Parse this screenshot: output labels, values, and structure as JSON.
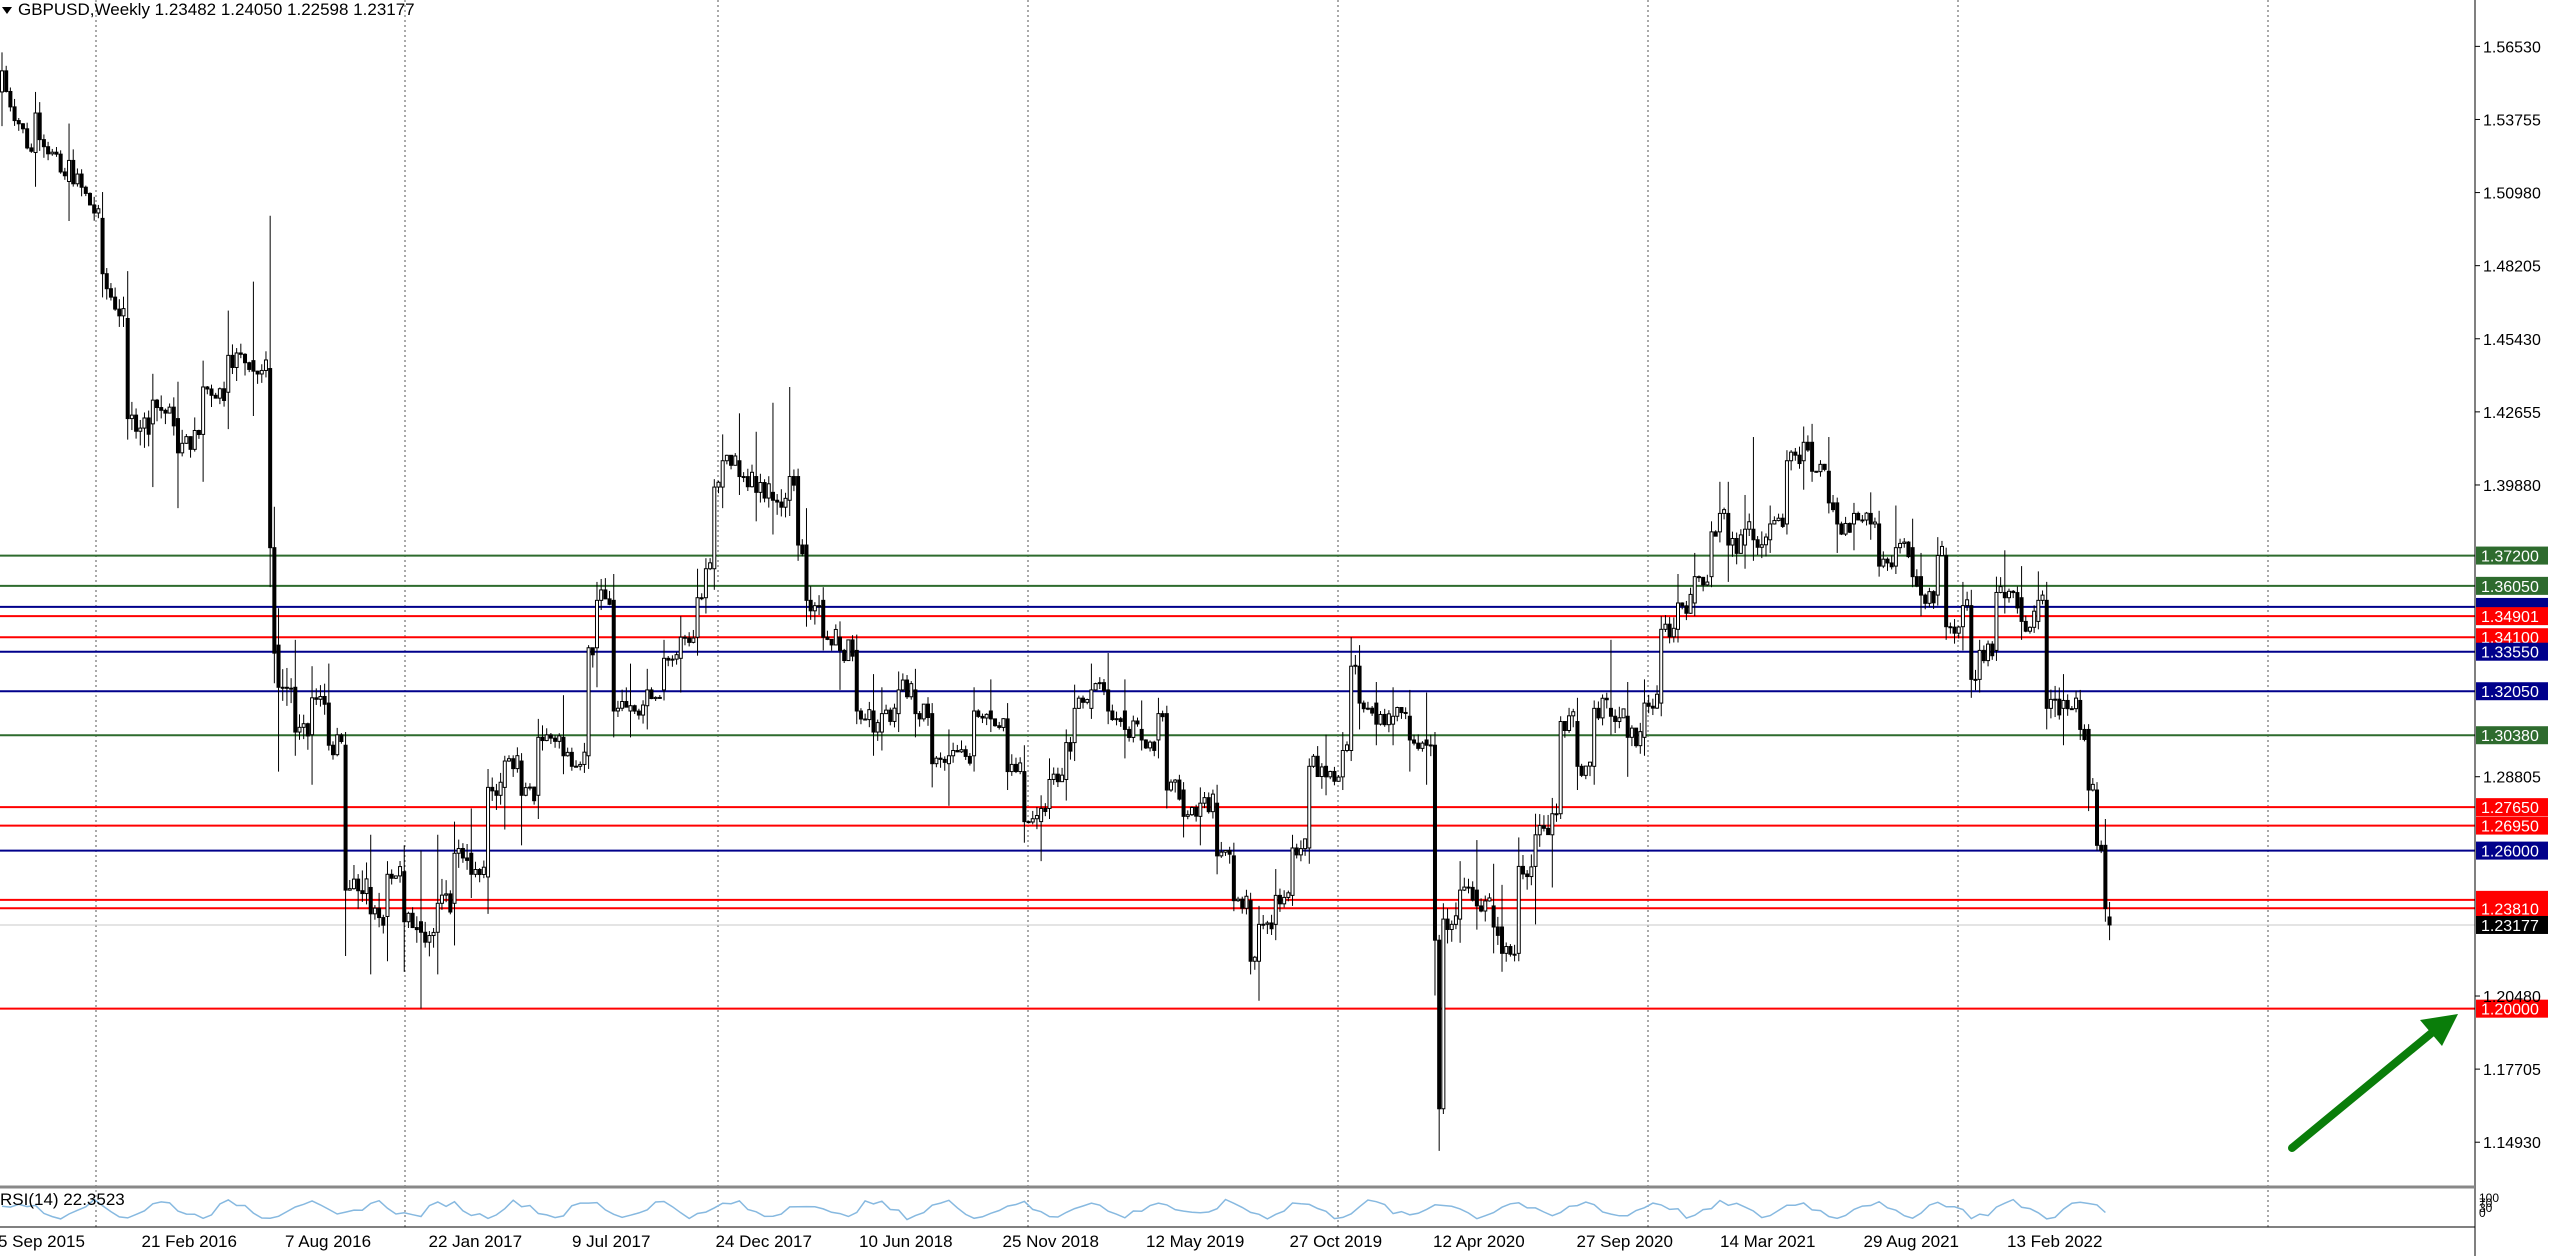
{
  "header": {
    "symbol_line": "GBPUSD,Weekly  1.23482 1.24050 1.22598 1.23177"
  },
  "rsi": {
    "label": "RSI(14) 22.3523",
    "current": 22.3523,
    "scale_labels": [
      "100",
      "70",
      "30",
      "0"
    ]
  },
  "colors": {
    "background": "#ffffff",
    "candle_up": "#ffffff",
    "candle_down": "#000000",
    "grid": "#555555",
    "red_level": "#ff0000",
    "green_level": "#2e6b2e",
    "blue_level": "#00008b",
    "price_tag": "#000000",
    "rsi_line": "#87b9e0",
    "arrow": "#0a7d0a"
  },
  "chart_data": {
    "type": "candlestick",
    "title": "GBPUSD,Weekly",
    "ohlc_current": {
      "open": 1.23482,
      "high": 1.2405,
      "low": 1.22598,
      "close": 1.23177
    },
    "y_ticks": [
      "1.56530",
      "1.53755",
      "1.50980",
      "1.48205",
      "1.45430",
      "1.42655",
      "1.39880",
      "1.28805",
      "1.20480",
      "1.17705",
      "1.14930"
    ],
    "y_range": [
      1.1323,
      1.5829
    ],
    "x_labels": [
      "5 Sep 2015",
      "21 Feb 2016",
      "7 Aug 2016",
      "22 Jan 2017",
      "9 Jul 2017",
      "24 Dec 2017",
      "10 Jun 2018",
      "25 Nov 2018",
      "12 May 2019",
      "27 Oct 2019",
      "12 Apr 2020",
      "27 Sep 2020",
      "14 Mar 2021",
      "29 Aug 2021",
      "13 Feb 2022"
    ],
    "levels": [
      {
        "price": 1.372,
        "label": "1.37200",
        "color": "green"
      },
      {
        "price": 1.3605,
        "label": "1.36050",
        "color": "green"
      },
      {
        "price": 1.3525,
        "label": "",
        "color": "blue"
      },
      {
        "price": 1.34901,
        "label": "1.34901",
        "color": "red"
      },
      {
        "price": 1.341,
        "label": "1.34100",
        "color": "red"
      },
      {
        "price": 1.3355,
        "label": "1.33550",
        "color": "blue"
      },
      {
        "price": 1.3205,
        "label": "1.32050",
        "color": "blue"
      },
      {
        "price": 1.3038,
        "label": "1.30380",
        "color": "green"
      },
      {
        "price": 1.2765,
        "label": "1.27650",
        "color": "red"
      },
      {
        "price": 1.2695,
        "label": "1.26950",
        "color": "red"
      },
      {
        "price": 1.26,
        "label": "1.26000",
        "color": "blue"
      },
      {
        "price": 1.2413,
        "label": "",
        "color": "red"
      },
      {
        "price": 1.2381,
        "label": "1.23810",
        "color": "red"
      },
      {
        "price": 1.23177,
        "label": "1.23177",
        "color": "black"
      },
      {
        "price": 1.2,
        "label": "1.20000",
        "color": "red"
      }
    ],
    "anchors": [
      [
        0,
        1.548,
        1.563,
        1.535,
        1.556
      ],
      [
        8,
        1.525,
        1.548,
        1.512,
        1.54
      ],
      [
        16,
        1.514,
        1.536,
        1.499,
        1.522
      ],
      [
        24,
        1.5,
        1.51,
        1.47,
        1.479
      ],
      [
        30,
        1.462,
        1.48,
        1.416,
        1.424
      ],
      [
        36,
        1.422,
        1.441,
        1.398,
        1.431
      ],
      [
        42,
        1.424,
        1.438,
        1.39,
        1.411
      ],
      [
        48,
        1.418,
        1.446,
        1.4,
        1.436
      ],
      [
        54,
        1.434,
        1.465,
        1.42,
        1.448
      ],
      [
        60,
        1.446,
        1.476,
        1.425,
        1.442
      ],
      [
        64,
        1.443,
        1.501,
        1.36,
        1.375
      ],
      [
        66,
        1.338,
        1.352,
        1.29,
        1.322
      ],
      [
        70,
        1.322,
        1.34,
        1.296,
        1.305
      ],
      [
        74,
        1.304,
        1.33,
        1.285,
        1.318
      ],
      [
        78,
        1.316,
        1.331,
        1.298,
        1.3
      ],
      [
        82,
        1.3,
        1.305,
        1.22,
        1.245
      ],
      [
        88,
        1.246,
        1.266,
        1.213,
        1.236
      ],
      [
        92,
        1.235,
        1.256,
        1.218,
        1.251
      ],
      [
        96,
        1.252,
        1.262,
        1.214,
        1.233
      ],
      [
        100,
        1.233,
        1.26,
        1.2,
        1.229
      ],
      [
        104,
        1.229,
        1.266,
        1.213,
        1.24
      ],
      [
        108,
        1.24,
        1.271,
        1.224,
        1.259
      ],
      [
        112,
        1.259,
        1.276,
        1.242,
        1.251
      ],
      [
        116,
        1.25,
        1.291,
        1.236,
        1.284
      ],
      [
        120,
        1.284,
        1.296,
        1.268,
        1.294
      ],
      [
        124,
        1.294,
        1.297,
        1.262,
        1.281
      ],
      [
        128,
        1.281,
        1.31,
        1.272,
        1.303
      ],
      [
        134,
        1.303,
        1.319,
        1.289,
        1.296
      ],
      [
        140,
        1.296,
        1.338,
        1.291,
        1.337
      ],
      [
        142,
        1.337,
        1.362,
        1.322,
        1.355
      ],
      [
        146,
        1.355,
        1.365,
        1.303,
        1.313
      ],
      [
        150,
        1.313,
        1.331,
        1.303,
        1.315
      ],
      [
        154,
        1.315,
        1.329,
        1.306,
        1.321
      ],
      [
        158,
        1.321,
        1.34,
        1.317,
        1.333
      ],
      [
        162,
        1.333,
        1.349,
        1.32,
        1.341
      ],
      [
        166,
        1.341,
        1.367,
        1.334,
        1.356
      ],
      [
        168,
        1.356,
        1.371,
        1.35,
        1.367
      ],
      [
        170,
        1.367,
        1.401,
        1.359,
        1.398
      ],
      [
        172,
        1.398,
        1.418,
        1.39,
        1.408
      ],
      [
        176,
        1.408,
        1.426,
        1.395,
        1.402
      ],
      [
        180,
        1.402,
        1.419,
        1.385,
        1.396
      ],
      [
        184,
        1.396,
        1.43,
        1.38,
        1.393
      ],
      [
        188,
        1.393,
        1.436,
        1.387,
        1.402
      ],
      [
        190,
        1.402,
        1.405,
        1.37,
        1.376
      ],
      [
        192,
        1.376,
        1.39,
        1.345,
        1.355
      ],
      [
        196,
        1.355,
        1.36,
        1.336,
        1.341
      ],
      [
        200,
        1.341,
        1.347,
        1.321,
        1.336
      ],
      [
        204,
        1.336,
        1.342,
        1.308,
        1.313
      ],
      [
        208,
        1.313,
        1.327,
        1.296,
        1.305
      ],
      [
        210,
        1.305,
        1.322,
        1.298,
        1.312
      ],
      [
        214,
        1.312,
        1.328,
        1.305,
        1.321
      ],
      [
        218,
        1.321,
        1.329,
        1.303,
        1.312
      ],
      [
        222,
        1.312,
        1.316,
        1.284,
        1.293
      ],
      [
        226,
        1.293,
        1.306,
        1.277,
        1.296
      ],
      [
        232,
        1.296,
        1.322,
        1.29,
        1.313
      ],
      [
        236,
        1.313,
        1.325,
        1.305,
        1.31
      ],
      [
        240,
        1.31,
        1.316,
        1.283,
        1.29
      ],
      [
        244,
        1.29,
        1.3,
        1.263,
        1.271
      ],
      [
        248,
        1.271,
        1.281,
        1.256,
        1.276
      ],
      [
        250,
        1.276,
        1.295,
        1.272,
        1.287
      ],
      [
        254,
        1.287,
        1.306,
        1.279,
        1.301
      ],
      [
        256,
        1.301,
        1.323,
        1.294,
        1.314
      ],
      [
        260,
        1.314,
        1.331,
        1.31,
        1.321
      ],
      [
        264,
        1.321,
        1.335,
        1.308,
        1.313
      ],
      [
        268,
        1.313,
        1.325,
        1.295,
        1.306
      ],
      [
        272,
        1.306,
        1.317,
        1.298,
        1.302
      ],
      [
        276,
        1.302,
        1.318,
        1.295,
        1.312
      ],
      [
        278,
        1.312,
        1.315,
        1.276,
        1.283
      ],
      [
        282,
        1.283,
        1.286,
        1.265,
        1.273
      ],
      [
        286,
        1.273,
        1.284,
        1.262,
        1.278
      ],
      [
        290,
        1.278,
        1.285,
        1.251,
        1.258
      ],
      [
        294,
        1.258,
        1.263,
        1.237,
        1.241
      ],
      [
        298,
        1.241,
        1.244,
        1.213,
        1.218
      ],
      [
        300,
        1.218,
        1.239,
        1.203,
        1.232
      ],
      [
        304,
        1.232,
        1.253,
        1.226,
        1.243
      ],
      [
        308,
        1.243,
        1.266,
        1.239,
        1.261
      ],
      [
        312,
        1.261,
        1.295,
        1.255,
        1.292
      ],
      [
        316,
        1.292,
        1.304,
        1.281,
        1.288
      ],
      [
        320,
        1.288,
        1.305,
        1.283,
        1.298
      ],
      [
        322,
        1.298,
        1.341,
        1.294,
        1.33
      ],
      [
        324,
        1.33,
        1.338,
        1.306,
        1.316
      ],
      [
        328,
        1.316,
        1.324,
        1.3,
        1.308
      ],
      [
        332,
        1.308,
        1.322,
        1.3,
        1.311
      ],
      [
        336,
        1.311,
        1.321,
        1.29,
        1.302
      ],
      [
        340,
        1.302,
        1.32,
        1.285,
        1.3
      ],
      [
        342,
        1.3,
        1.305,
        1.205,
        1.226
      ],
      [
        343,
        1.226,
        1.228,
        1.146,
        1.162
      ],
      [
        344,
        1.162,
        1.24,
        1.16,
        1.234
      ],
      [
        348,
        1.234,
        1.256,
        1.225,
        1.245
      ],
      [
        352,
        1.245,
        1.264,
        1.23,
        1.239
      ],
      [
        356,
        1.239,
        1.255,
        1.221,
        1.231
      ],
      [
        358,
        1.231,
        1.247,
        1.214,
        1.221
      ],
      [
        362,
        1.221,
        1.265,
        1.218,
        1.254
      ],
      [
        366,
        1.254,
        1.274,
        1.232,
        1.266
      ],
      [
        370,
        1.266,
        1.28,
        1.246,
        1.274
      ],
      [
        372,
        1.274,
        1.311,
        1.272,
        1.309
      ],
      [
        376,
        1.309,
        1.318,
        1.283,
        1.292
      ],
      [
        380,
        1.292,
        1.317,
        1.285,
        1.314
      ],
      [
        384,
        1.314,
        1.34,
        1.304,
        1.311
      ],
      [
        388,
        1.311,
        1.324,
        1.288,
        1.303
      ],
      [
        392,
        1.303,
        1.325,
        1.296,
        1.316
      ],
      [
        396,
        1.316,
        1.349,
        1.311,
        1.344
      ],
      [
        400,
        1.344,
        1.365,
        1.339,
        1.354
      ],
      [
        404,
        1.354,
        1.373,
        1.349,
        1.364
      ],
      [
        408,
        1.364,
        1.385,
        1.36,
        1.381
      ],
      [
        410,
        1.381,
        1.4,
        1.377,
        1.388
      ],
      [
        412,
        1.388,
        1.4,
        1.362,
        1.376
      ],
      [
        416,
        1.376,
        1.395,
        1.367,
        1.382
      ],
      [
        418,
        1.382,
        1.417,
        1.37,
        1.378
      ],
      [
        422,
        1.378,
        1.391,
        1.373,
        1.384
      ],
      [
        426,
        1.384,
        1.412,
        1.38,
        1.408
      ],
      [
        430,
        1.408,
        1.421,
        1.397,
        1.415
      ],
      [
        432,
        1.415,
        1.422,
        1.4,
        1.404
      ],
      [
        436,
        1.404,
        1.417,
        1.388,
        1.392
      ],
      [
        438,
        1.392,
        1.394,
        1.373,
        1.384
      ],
      [
        442,
        1.384,
        1.392,
        1.374,
        1.388
      ],
      [
        446,
        1.388,
        1.396,
        1.378,
        1.384
      ],
      [
        448,
        1.384,
        1.389,
        1.364,
        1.368
      ],
      [
        452,
        1.368,
        1.391,
        1.365,
        1.375
      ],
      [
        456,
        1.375,
        1.386,
        1.36,
        1.364
      ],
      [
        458,
        1.364,
        1.373,
        1.349,
        1.357
      ],
      [
        462,
        1.357,
        1.379,
        1.353,
        1.372
      ],
      [
        464,
        1.372,
        1.375,
        1.34,
        1.345
      ],
      [
        468,
        1.345,
        1.362,
        1.336,
        1.353
      ],
      [
        470,
        1.353,
        1.359,
        1.318,
        1.325
      ],
      [
        472,
        1.325,
        1.34,
        1.32,
        1.336
      ],
      [
        476,
        1.336,
        1.364,
        1.332,
        1.358
      ],
      [
        478,
        1.358,
        1.374,
        1.35,
        1.356
      ],
      [
        482,
        1.356,
        1.368,
        1.34,
        1.347
      ],
      [
        486,
        1.347,
        1.366,
        1.344,
        1.355
      ],
      [
        488,
        1.355,
        1.362,
        1.306,
        1.314
      ],
      [
        492,
        1.314,
        1.327,
        1.3,
        1.317
      ],
      [
        496,
        1.317,
        1.321,
        1.302,
        1.306
      ],
      [
        498,
        1.306,
        1.308,
        1.275,
        1.283
      ],
      [
        500,
        1.283,
        1.286,
        1.26,
        1.262
      ],
      [
        502,
        1.262,
        1.272,
        1.233,
        1.238
      ],
      [
        503,
        1.2348,
        1.2405,
        1.226,
        1.23177
      ]
    ]
  }
}
